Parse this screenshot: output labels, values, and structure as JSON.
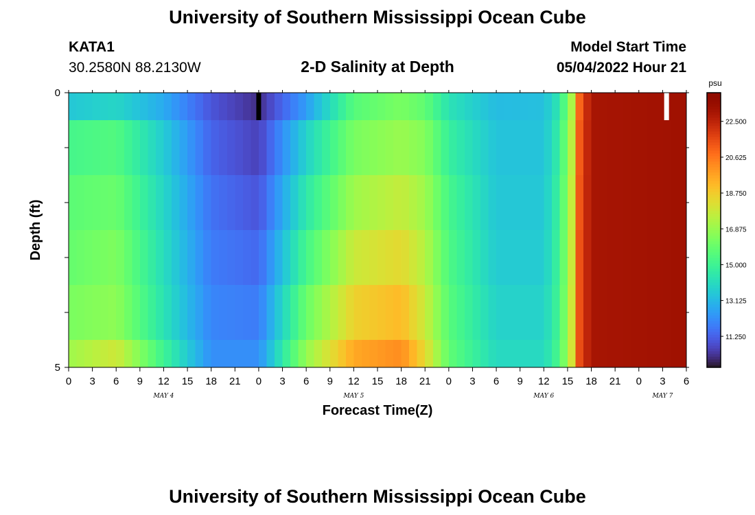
{
  "page": {
    "title": "University of Southern Mississippi Ocean Cube",
    "footer_title": "University of Southern Mississippi Ocean Cube"
  },
  "station": {
    "id": "KATA1",
    "coords": "30.2580N  88.2130W"
  },
  "model": {
    "label": "Model Start Time",
    "start": "05/04/2022 Hour 21"
  },
  "chart_data": {
    "type": "heatmap",
    "title": "2-D Salinity at Depth",
    "xlabel": "Forecast Time(Z)",
    "ylabel": "Depth (ft)",
    "x_unit": "hours since 05/04/2022 00Z",
    "xlim": [
      0,
      78
    ],
    "ylim": [
      0,
      5
    ],
    "x_tick_labels": [
      "0",
      "3",
      "6",
      "9",
      "12",
      "15",
      "18",
      "21",
      "0",
      "3",
      "6",
      "9",
      "12",
      "15",
      "18",
      "21",
      "0",
      "3",
      "6",
      "9",
      "12",
      "15",
      "18",
      "21",
      "0",
      "3",
      "6"
    ],
    "y_tick_labels": [
      "0",
      "5"
    ],
    "day_labels": [
      {
        "x": 12,
        "label": "MAY 4"
      },
      {
        "x": 36,
        "label": "MAY 5"
      },
      {
        "x": 60,
        "label": "MAY 6"
      },
      {
        "x": 75,
        "label": "MAY 7"
      }
    ],
    "depth_rows": [
      {
        "y0": 0,
        "y1": 0.5
      },
      {
        "y0": 0.5,
        "y1": 1.5
      },
      {
        "y0": 1.5,
        "y1": 2.5
      },
      {
        "y0": 2.5,
        "y1": 3.5
      },
      {
        "y0": 3.5,
        "y1": 4.5
      },
      {
        "y0": 4.5,
        "y1": 5
      }
    ],
    "profile_times": [
      0,
      6,
      12,
      18,
      24,
      30,
      36,
      42,
      45,
      48,
      54,
      60,
      62,
      63.5,
      64.5,
      66,
      78
    ],
    "salinity_psu": [
      [
        13.5,
        13.9,
        12.8,
        11.0,
        10.2,
        12.5,
        15.6,
        16.3,
        15.8,
        14.3,
        13.2,
        13.3,
        14.5,
        17.2,
        21.0,
        23.0,
        23.2
      ],
      [
        15.2,
        15.5,
        13.6,
        11.3,
        10.6,
        13.8,
        16.3,
        16.9,
        16.5,
        14.8,
        13.4,
        13.4,
        14.8,
        17.5,
        21.2,
        23.0,
        23.2
      ],
      [
        15.7,
        16.0,
        13.9,
        11.6,
        11.0,
        14.5,
        17.0,
        17.7,
        17.0,
        15.2,
        13.5,
        13.5,
        15.0,
        17.7,
        21.3,
        23.0,
        23.2
      ],
      [
        15.9,
        16.4,
        14.1,
        11.8,
        11.4,
        15.2,
        17.8,
        18.4,
        17.4,
        15.4,
        13.6,
        13.6,
        15.1,
        17.8,
        21.4,
        23.0,
        23.2
      ],
      [
        16.3,
        16.7,
        14.3,
        12.0,
        11.8,
        16.0,
        18.6,
        19.2,
        17.8,
        15.6,
        13.8,
        13.8,
        15.2,
        17.9,
        21.4,
        23.0,
        23.2
      ],
      [
        17.0,
        17.9,
        15.0,
        12.2,
        12.2,
        16.8,
        19.6,
        20.2,
        18.4,
        15.8,
        14.0,
        14.0,
        15.4,
        18.0,
        21.5,
        23.0,
        23.2
      ]
    ],
    "markers": [
      {
        "time": 24,
        "depth_range": [
          0,
          0.5
        ],
        "color": "#000000"
      },
      {
        "time": 75.5,
        "depth_range": [
          0,
          0.5
        ],
        "color": "#ffffff"
      }
    ],
    "colorbar": {
      "unit": "psu",
      "min": 9.625,
      "max": 24.0,
      "ticks": [
        "22.500",
        "20.625",
        "18.750",
        "16.875",
        "15.000",
        "13.125",
        "11.250"
      ],
      "tick_values": [
        22.5,
        20.625,
        18.75,
        16.875,
        15.0,
        13.125,
        11.25
      ],
      "colormap": "turbo"
    }
  }
}
